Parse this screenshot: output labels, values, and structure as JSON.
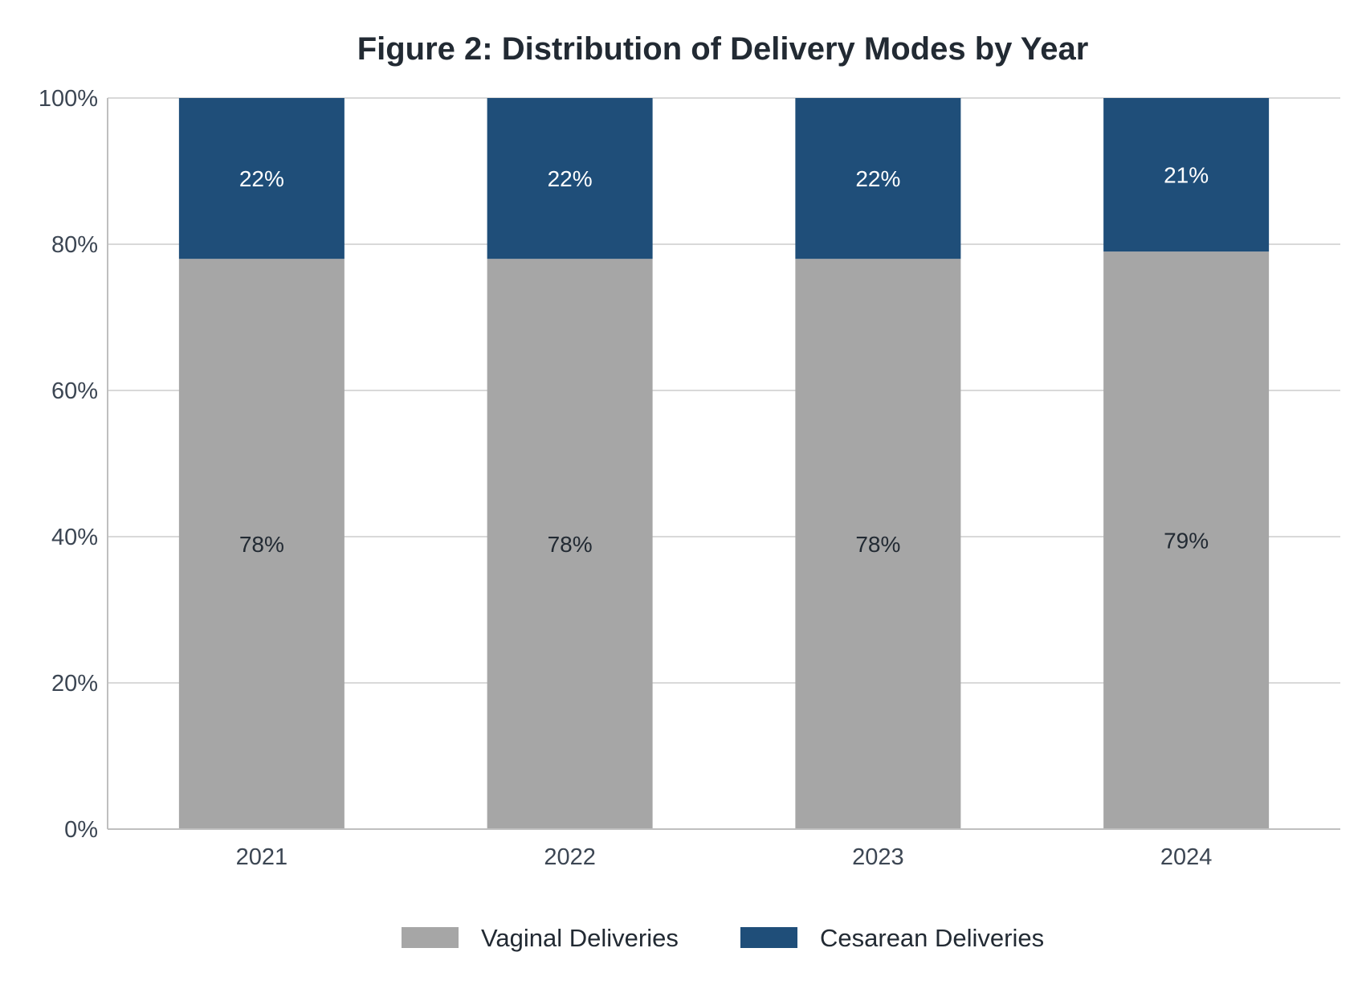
{
  "chart_data": {
    "type": "bar",
    "stacked": true,
    "title": "Figure 2: Distribution of Delivery Modes by Year",
    "xlabel": "",
    "ylabel": "",
    "categories": [
      "2021",
      "2022",
      "2023",
      "2024"
    ],
    "series": [
      {
        "name": "Vaginal Deliveries",
        "values": [
          78,
          78,
          78,
          79
        ],
        "labels": [
          "78%",
          "78%",
          "78%",
          "79%"
        ],
        "color": "#a6a6a6",
        "label_color": "#222a33"
      },
      {
        "name": "Cesarean Deliveries",
        "values": [
          22,
          22,
          22,
          21
        ],
        "labels": [
          "22%",
          "22%",
          "22%",
          "21%"
        ],
        "color": "#1f4e79",
        "label_color": "#ffffff"
      }
    ],
    "ylim": [
      0,
      100
    ],
    "yticks": [
      0,
      20,
      40,
      60,
      80,
      100
    ],
    "ytick_labels": [
      "0%",
      "20%",
      "40%",
      "60%",
      "80%",
      "100%"
    ],
    "grid": true,
    "legend_position": "bottom"
  }
}
